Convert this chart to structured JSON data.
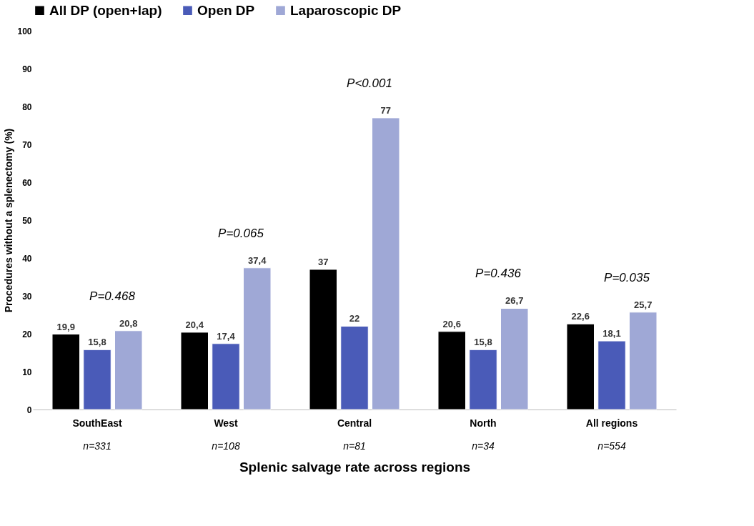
{
  "chart_data": {
    "type": "bar",
    "xlabel": "Splenic salvage rate across regions",
    "ylabel": "Procedures without a splenectomy (%)",
    "categories": [
      "SouthEast",
      "West",
      "Central",
      "North",
      "All regions"
    ],
    "series": [
      {
        "name": "All DP (open+lap)",
        "color": "#000000",
        "values": [
          19.9,
          20.4,
          37,
          20.6,
          22.6
        ],
        "value_labels": [
          "19,9",
          "20,4",
          "37",
          "20,6",
          "22,6"
        ]
      },
      {
        "name": "Open DP",
        "color": "#4a5bb8",
        "values": [
          15.8,
          17.4,
          22,
          15.8,
          18.1
        ],
        "value_labels": [
          "15,8",
          "17,4",
          "22",
          "15,8",
          "18,1"
        ]
      },
      {
        "name": "Laparoscopic DP",
        "color": "#9fa8d6",
        "values": [
          20.8,
          37.4,
          77,
          26.7,
          25.7
        ],
        "value_labels": [
          "20,8",
          "37,4",
          "77",
          "26,7",
          "25,7"
        ]
      }
    ],
    "ylim": [
      0,
      100
    ],
    "yticks": [
      0,
      10,
      20,
      30,
      40,
      50,
      60,
      70,
      80,
      90,
      100
    ],
    "grid": false,
    "legend": "top",
    "annotations": [
      "P=0.468",
      "P=0.065",
      "P<0.001",
      "P=0.436",
      "P=0.035",
      "n=331",
      "n=108",
      "n=81",
      "n=34",
      "n=554"
    ]
  }
}
